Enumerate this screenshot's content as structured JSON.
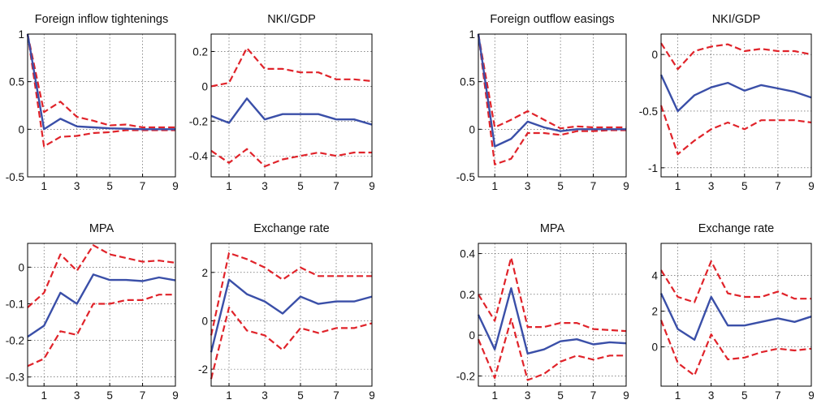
{
  "chart_data": [
    {
      "type": "line",
      "title": "Foreign inflow tightenings",
      "x": [
        0,
        1,
        2,
        3,
        4,
        5,
        6,
        7,
        8,
        9
      ],
      "xticks": [
        "1",
        "3",
        "5",
        "7",
        "9"
      ],
      "ylim": [
        -0.5,
        1
      ],
      "yticks": [
        "-0.5",
        "0",
        "0.5",
        "1"
      ],
      "ytick_values": [
        -0.5,
        0,
        0.5,
        1
      ],
      "grid": "dotted",
      "series": [
        {
          "role": "estimate",
          "color": "#3a4fa8",
          "style": "solid",
          "values": [
            1,
            0.0,
            0.11,
            0.03,
            0.02,
            0.01,
            0.005,
            0.0,
            0.0,
            0.0
          ]
        },
        {
          "role": "upper",
          "color": "#e0232a",
          "style": "dashed",
          "values": [
            1,
            0.18,
            0.29,
            0.13,
            0.09,
            0.04,
            0.05,
            0.02,
            0.02,
            0.02
          ]
        },
        {
          "role": "lower",
          "color": "#e0232a",
          "style": "dashed",
          "values": [
            1,
            -0.18,
            -0.08,
            -0.07,
            -0.04,
            -0.03,
            -0.01,
            -0.01,
            -0.01,
            -0.01
          ]
        }
      ]
    },
    {
      "type": "line",
      "title": "NKI/GDP",
      "x": [
        0,
        1,
        2,
        3,
        4,
        5,
        6,
        7,
        8,
        9
      ],
      "xticks": [
        "1",
        "3",
        "5",
        "7",
        "9"
      ],
      "ylim": [
        -0.52,
        0.3
      ],
      "yticks": [
        "-0.4",
        "-0.2",
        "0",
        "0.2"
      ],
      "ytick_values": [
        -0.4,
        -0.2,
        0,
        0.2
      ],
      "grid": "dotted",
      "series": [
        {
          "role": "estimate",
          "color": "#3a4fa8",
          "style": "solid",
          "values": [
            -0.17,
            -0.21,
            -0.07,
            -0.19,
            -0.16,
            -0.16,
            -0.16,
            -0.19,
            -0.19,
            -0.22
          ]
        },
        {
          "role": "upper",
          "color": "#e0232a",
          "style": "dashed",
          "values": [
            0.0,
            0.02,
            0.22,
            0.1,
            0.1,
            0.08,
            0.08,
            0.04,
            0.04,
            0.03
          ]
        },
        {
          "role": "lower",
          "color": "#e0232a",
          "style": "dashed",
          "values": [
            -0.37,
            -0.44,
            -0.36,
            -0.46,
            -0.42,
            -0.4,
            -0.38,
            -0.4,
            -0.38,
            -0.38
          ]
        }
      ]
    },
    {
      "type": "line",
      "title": "Foreign outflow easings",
      "x": [
        0,
        1,
        2,
        3,
        4,
        5,
        6,
        7,
        8,
        9
      ],
      "xticks": [
        "1",
        "3",
        "5",
        "7",
        "9"
      ],
      "ylim": [
        -0.5,
        1
      ],
      "yticks": [
        "-0.5",
        "0",
        "0.5",
        "1"
      ],
      "ytick_values": [
        -0.5,
        0,
        0.5,
        1
      ],
      "grid": "dotted",
      "series": [
        {
          "role": "estimate",
          "color": "#3a4fa8",
          "style": "solid",
          "values": [
            1,
            -0.18,
            -0.1,
            0.08,
            0.02,
            -0.02,
            0.0,
            0.0,
            0.0,
            0.0
          ]
        },
        {
          "role": "upper",
          "color": "#e0232a",
          "style": "dashed",
          "values": [
            1,
            0.02,
            0.1,
            0.19,
            0.1,
            0.01,
            0.03,
            0.02,
            0.02,
            0.02
          ]
        },
        {
          "role": "lower",
          "color": "#e0232a",
          "style": "dashed",
          "values": [
            1,
            -0.37,
            -0.31,
            -0.04,
            -0.04,
            -0.06,
            -0.02,
            -0.02,
            -0.01,
            -0.01
          ]
        }
      ]
    },
    {
      "type": "line",
      "title": "NKI/GDP",
      "x": [
        0,
        1,
        2,
        3,
        4,
        5,
        6,
        7,
        8,
        9
      ],
      "xticks": [
        "1",
        "3",
        "5",
        "7",
        "9"
      ],
      "ylim": [
        -1.08,
        0.18
      ],
      "yticks": [
        "-1",
        "-0.5",
        "0"
      ],
      "ytick_values": [
        -1,
        -0.5,
        0
      ],
      "grid": "dotted",
      "series": [
        {
          "role": "estimate",
          "color": "#3a4fa8",
          "style": "solid",
          "values": [
            -0.18,
            -0.5,
            -0.36,
            -0.29,
            -0.25,
            -0.32,
            -0.27,
            -0.3,
            -0.33,
            -0.38
          ]
        },
        {
          "role": "upper",
          "color": "#e0232a",
          "style": "dashed",
          "values": [
            0.1,
            -0.13,
            0.03,
            0.07,
            0.09,
            0.03,
            0.05,
            0.03,
            0.03,
            0.0
          ]
        },
        {
          "role": "lower",
          "color": "#e0232a",
          "style": "dashed",
          "values": [
            -0.45,
            -0.88,
            -0.76,
            -0.66,
            -0.6,
            -0.66,
            -0.58,
            -0.58,
            -0.58,
            -0.6
          ]
        }
      ]
    },
    {
      "type": "line",
      "title": "MPA",
      "x": [
        0,
        1,
        2,
        3,
        4,
        5,
        6,
        7,
        8,
        9
      ],
      "xticks": [
        "1",
        "3",
        "5",
        "7",
        "9"
      ],
      "ylim": [
        -0.325,
        0.065
      ],
      "yticks": [
        "-0.3",
        "-0.2",
        "-0.1",
        "0"
      ],
      "ytick_values": [
        -0.3,
        -0.2,
        -0.1,
        0
      ],
      "grid": "dotted",
      "series": [
        {
          "role": "estimate",
          "color": "#3a4fa8",
          "style": "solid",
          "values": [
            -0.19,
            -0.16,
            -0.07,
            -0.1,
            -0.02,
            -0.035,
            -0.035,
            -0.038,
            -0.028,
            -0.036
          ]
        },
        {
          "role": "upper",
          "color": "#e0232a",
          "style": "dashed",
          "values": [
            -0.11,
            -0.07,
            0.035,
            -0.01,
            0.06,
            0.035,
            0.025,
            0.015,
            0.018,
            0.012
          ]
        },
        {
          "role": "lower",
          "color": "#e0232a",
          "style": "dashed",
          "values": [
            -0.27,
            -0.25,
            -0.175,
            -0.185,
            -0.1,
            -0.1,
            -0.09,
            -0.09,
            -0.075,
            -0.075
          ]
        }
      ]
    },
    {
      "type": "line",
      "title": "Exchange rate",
      "x": [
        0,
        1,
        2,
        3,
        4,
        5,
        6,
        7,
        8,
        9
      ],
      "xticks": [
        "1",
        "3",
        "5",
        "7",
        "9"
      ],
      "ylim": [
        -2.7,
        3.2
      ],
      "yticks": [
        "-2",
        "0",
        "2"
      ],
      "ytick_values": [
        -2,
        0,
        2
      ],
      "grid": "dotted",
      "series": [
        {
          "role": "estimate",
          "color": "#3a4fa8",
          "style": "solid",
          "values": [
            -1.3,
            1.7,
            1.1,
            0.8,
            0.3,
            1.0,
            0.7,
            0.8,
            0.8,
            1.0
          ]
        },
        {
          "role": "upper",
          "color": "#e0232a",
          "style": "dashed",
          "values": [
            -0.6,
            2.8,
            2.55,
            2.2,
            1.7,
            2.2,
            1.85,
            1.85,
            1.85,
            1.85
          ]
        },
        {
          "role": "lower",
          "color": "#e0232a",
          "style": "dashed",
          "values": [
            -2.4,
            0.55,
            -0.4,
            -0.6,
            -1.2,
            -0.3,
            -0.5,
            -0.3,
            -0.3,
            -0.1
          ]
        }
      ]
    },
    {
      "type": "line",
      "title": "MPA",
      "x": [
        0,
        1,
        2,
        3,
        4,
        5,
        6,
        7,
        8,
        9
      ],
      "xticks": [
        "1",
        "3",
        "5",
        "7",
        "9"
      ],
      "ylim": [
        -0.25,
        0.45
      ],
      "yticks": [
        "-0.2",
        "0",
        "0.2",
        "0.4"
      ],
      "ytick_values": [
        -0.2,
        0,
        0.2,
        0.4
      ],
      "grid": "dotted",
      "series": [
        {
          "role": "estimate",
          "color": "#3a4fa8",
          "style": "solid",
          "values": [
            0.1,
            -0.07,
            0.23,
            -0.09,
            -0.07,
            -0.03,
            -0.02,
            -0.045,
            -0.035,
            -0.04
          ]
        },
        {
          "role": "upper",
          "color": "#e0232a",
          "style": "dashed",
          "values": [
            0.2,
            0.07,
            0.38,
            0.04,
            0.04,
            0.06,
            0.06,
            0.03,
            0.025,
            0.02
          ]
        },
        {
          "role": "lower",
          "color": "#e0232a",
          "style": "dashed",
          "values": [
            -0.02,
            -0.21,
            0.08,
            -0.22,
            -0.19,
            -0.13,
            -0.1,
            -0.12,
            -0.1,
            -0.1
          ]
        }
      ]
    },
    {
      "type": "line",
      "title": "Exchange rate",
      "x": [
        0,
        1,
        2,
        3,
        4,
        5,
        6,
        7,
        8,
        9
      ],
      "xticks": [
        "1",
        "3",
        "5",
        "7",
        "9"
      ],
      "ylim": [
        -2.2,
        5.8
      ],
      "yticks": [
        "0",
        "2",
        "4"
      ],
      "ytick_values": [
        0,
        2,
        4
      ],
      "grid": "dotted",
      "series": [
        {
          "role": "estimate",
          "color": "#3a4fa8",
          "style": "solid",
          "values": [
            3.0,
            1.0,
            0.4,
            2.8,
            1.2,
            1.2,
            1.4,
            1.6,
            1.4,
            1.7
          ]
        },
        {
          "role": "upper",
          "color": "#e0232a",
          "style": "dashed",
          "values": [
            4.3,
            2.8,
            2.5,
            4.8,
            3.0,
            2.8,
            2.8,
            3.1,
            2.7,
            2.7
          ]
        },
        {
          "role": "lower",
          "color": "#e0232a",
          "style": "dashed",
          "values": [
            1.5,
            -0.9,
            -1.6,
            0.7,
            -0.7,
            -0.6,
            -0.3,
            -0.1,
            -0.2,
            -0.1
          ]
        }
      ]
    }
  ]
}
